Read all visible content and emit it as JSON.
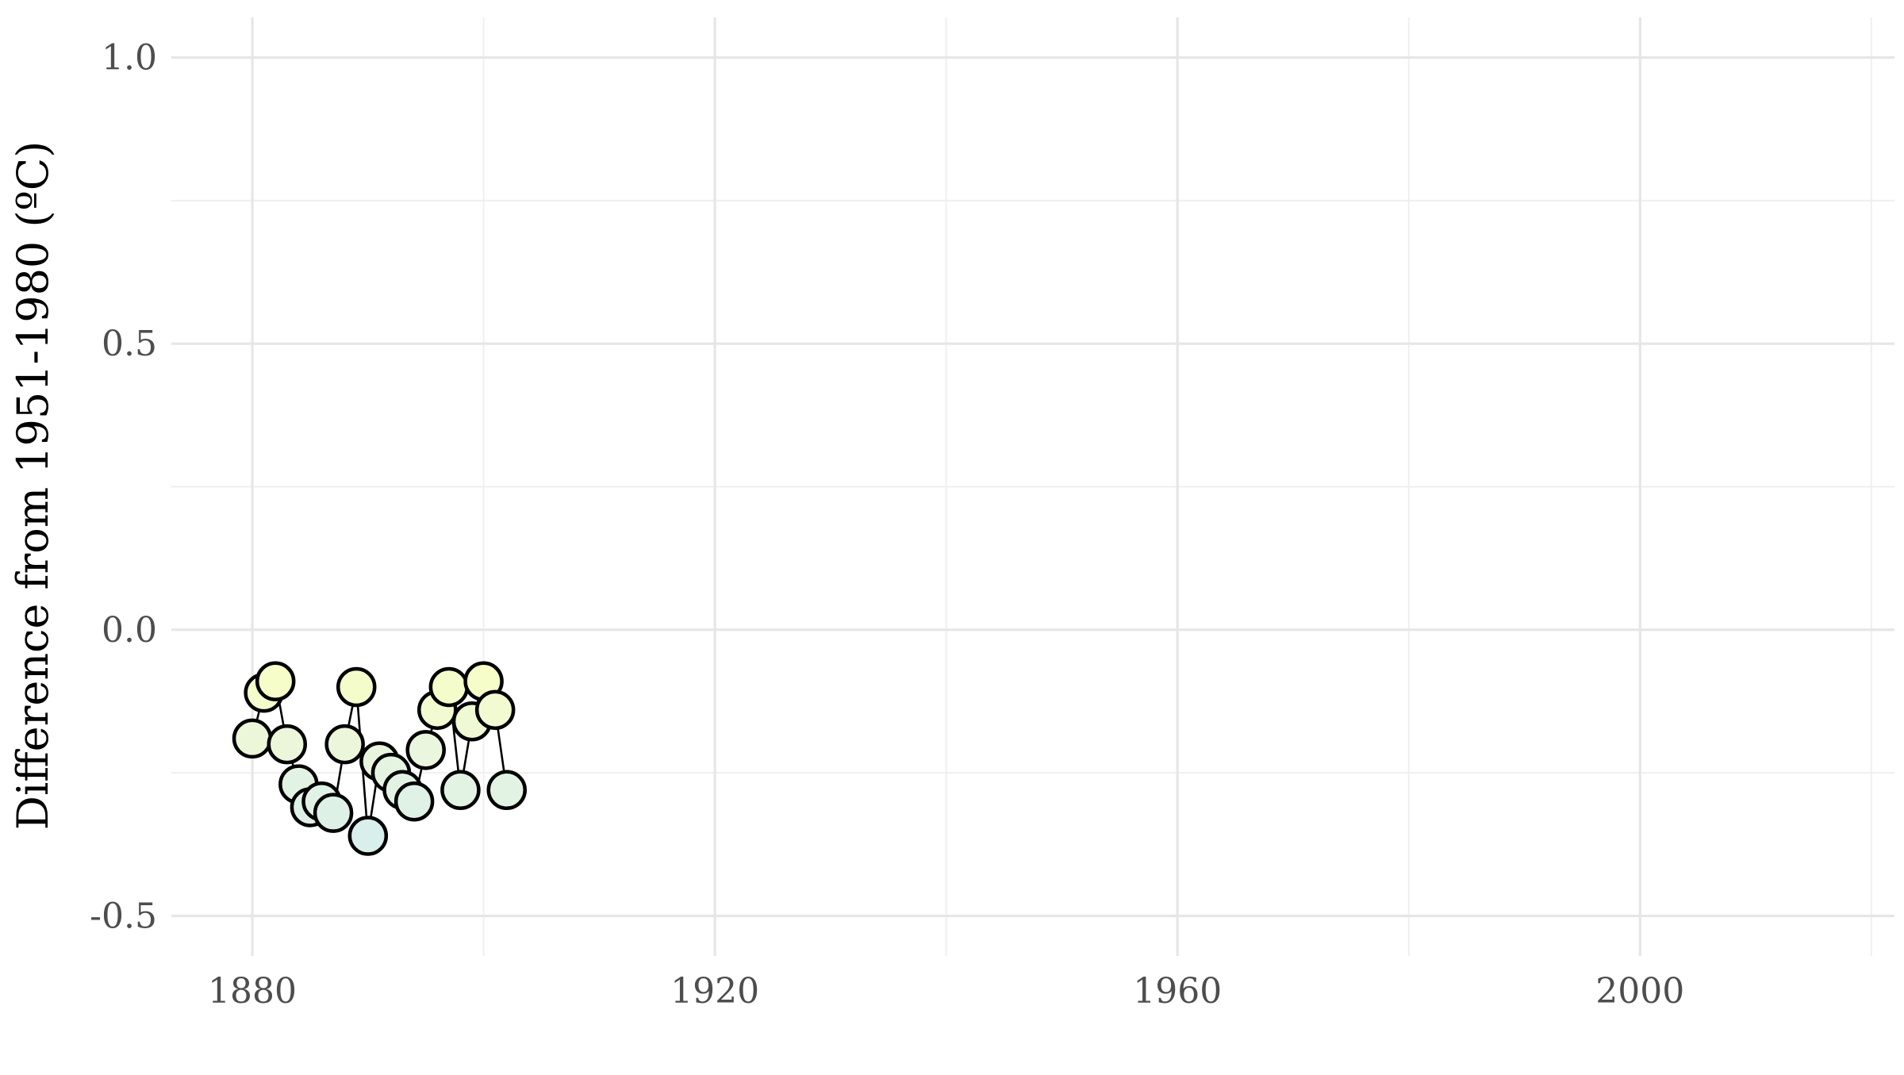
{
  "chart_data": {
    "type": "scatter",
    "title": "",
    "xlabel": "",
    "ylabel": "Difference from 1951-1980 (ºC)",
    "xlim": [
      1873,
      2022
    ],
    "ylim": [
      -0.57,
      1.07
    ],
    "x_ticks": [
      1880,
      1920,
      1960,
      2000
    ],
    "x_tick_labels": [
      "1880",
      "1920",
      "1960",
      "2000"
    ],
    "x_minor_ticks": [
      1900,
      1940,
      1980,
      2020
    ],
    "y_ticks": [
      -0.5,
      0.0,
      0.5,
      1.0
    ],
    "y_tick_labels": [
      "-0.5",
      "0.0",
      "0.5",
      "1.0"
    ],
    "y_minor_ticks": [
      -0.25,
      0.25,
      0.75
    ],
    "grid": true,
    "legend": "none",
    "connect_points": true,
    "point_color_scale": {
      "low": "#d9efeb",
      "mid": "#e8f5df",
      "high": "#f6fdc9"
    },
    "series": [
      {
        "x": [
          1880,
          1881,
          1882,
          1883,
          1884,
          1885,
          1886,
          1887,
          1888,
          1889,
          1890,
          1891,
          1892,
          1893,
          1894,
          1895,
          1896,
          1897,
          1898,
          1899,
          1900,
          1901,
          1902
        ],
        "y": [
          -0.19,
          -0.11,
          -0.09,
          -0.2,
          -0.27,
          -0.31,
          -0.3,
          -0.32,
          -0.2,
          -0.1,
          -0.36,
          -0.23,
          -0.25,
          -0.28,
          -0.3,
          -0.21,
          -0.14,
          -0.1,
          -0.28,
          -0.16,
          -0.09,
          -0.14,
          -0.28
        ]
      }
    ]
  }
}
